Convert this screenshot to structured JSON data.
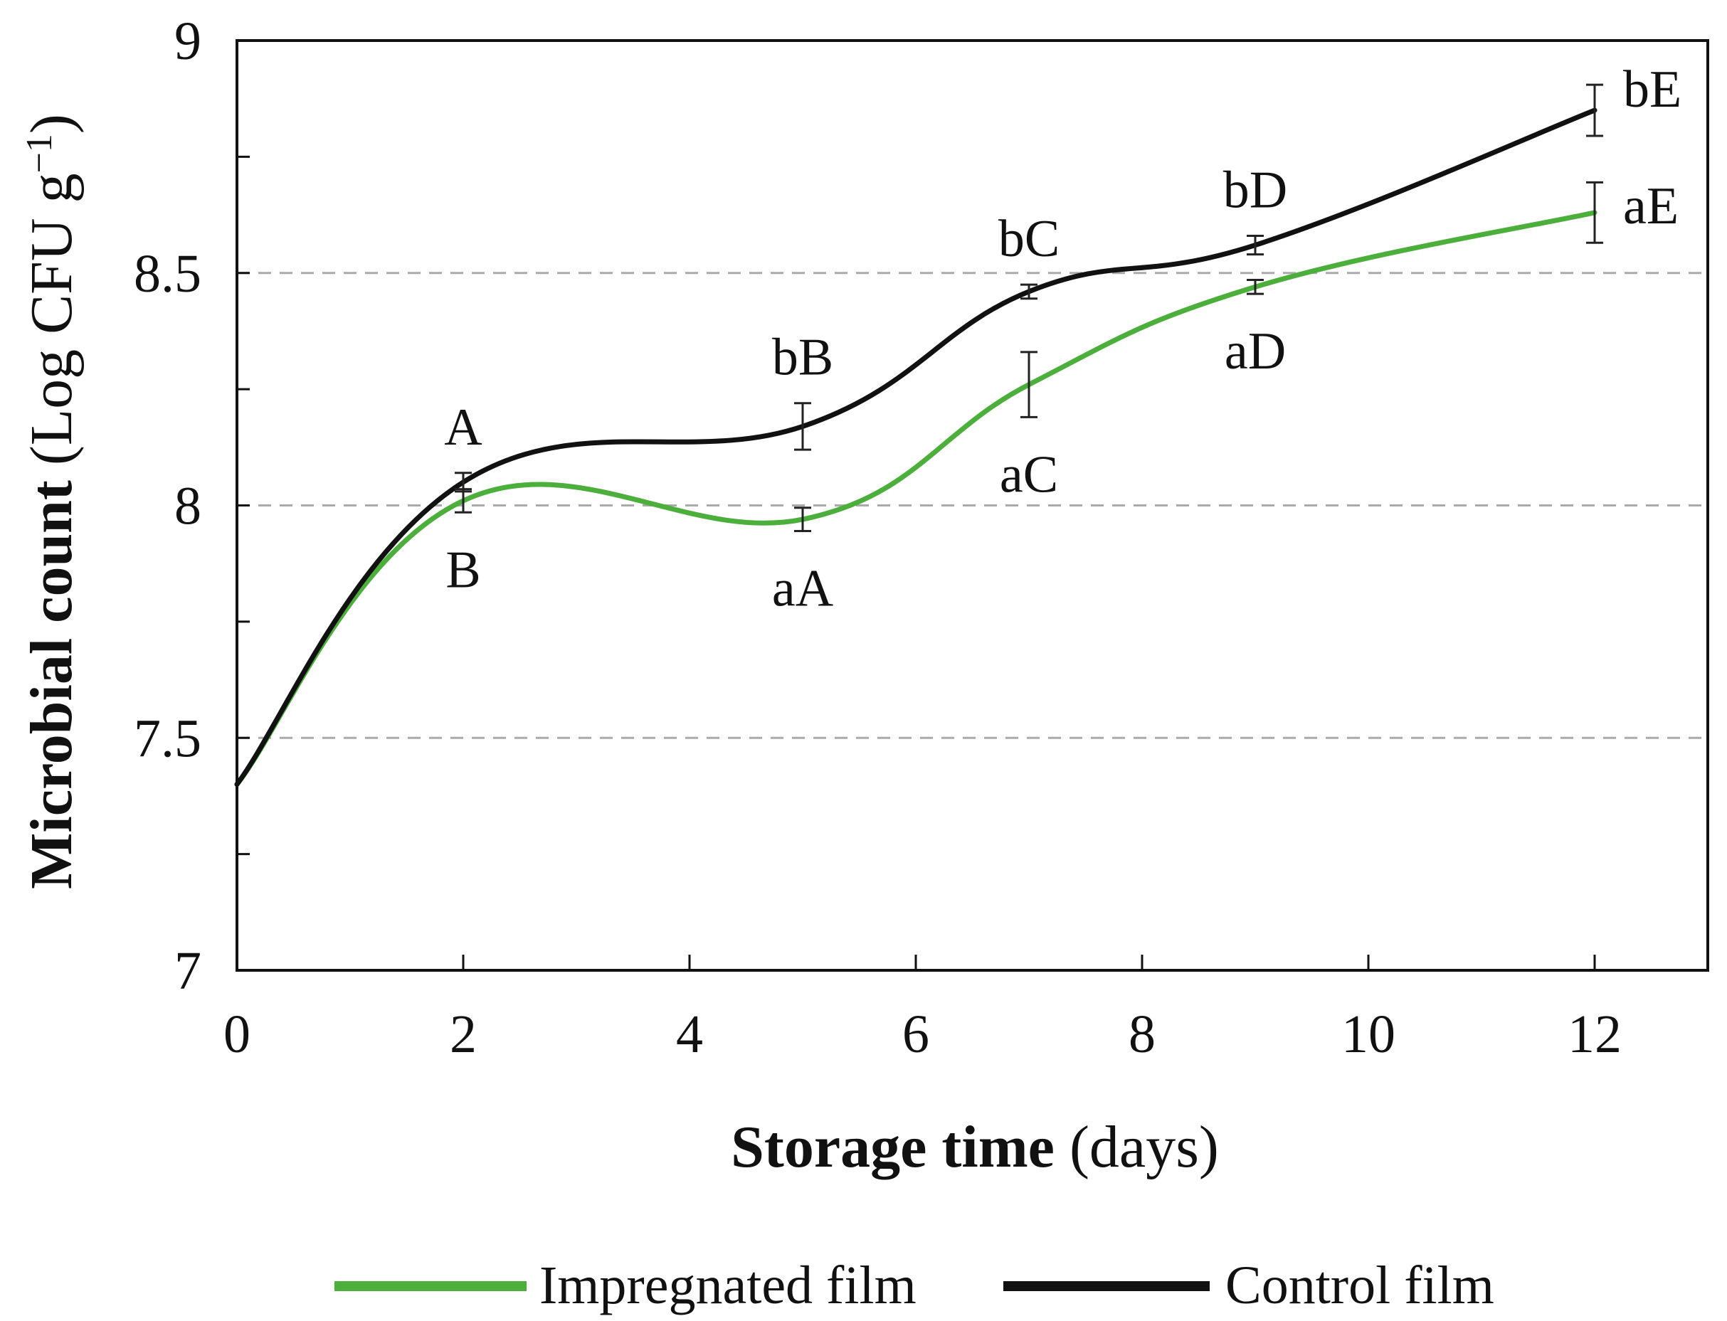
{
  "chart_data": {
    "type": "line",
    "xlabel": {
      "bold": "Storage time",
      "rest": " (days)"
    },
    "ylabel": {
      "bold": "Microbial count",
      "rest": " (Log CFU g",
      "sup": "−1",
      "close": ")"
    },
    "xlim": [
      0,
      13
    ],
    "ylim": [
      7,
      9
    ],
    "x_ticks": [
      0,
      2,
      4,
      6,
      8,
      10,
      12
    ],
    "x_tick_labels": [
      "0",
      "2",
      "4",
      "6",
      "8",
      "10",
      "12"
    ],
    "y_ticks": [
      7,
      7.25,
      7.5,
      7.75,
      8,
      8.25,
      8.5,
      8.75,
      9
    ],
    "y_tick_labels": [
      "7",
      "",
      "7.5",
      "",
      "8",
      "",
      "8.5",
      "",
      "9"
    ],
    "y_gridlines": [
      7.5,
      8,
      8.5
    ],
    "grid": "dashed horizontal at 7.5, 8, 8.5",
    "legend_position": "bottom",
    "series": [
      {
        "name": "Impregnated film",
        "color": "#4caf3c",
        "x": [
          0,
          2,
          5,
          7,
          9,
          12
        ],
        "y": [
          7.4,
          8.01,
          7.97,
          8.26,
          8.47,
          8.63
        ],
        "err": [
          0,
          0.025,
          0.025,
          0.07,
          0.015,
          0.065
        ],
        "labels": [
          "",
          "B",
          "aA",
          "aC",
          "aD",
          "aE"
        ]
      },
      {
        "name": "Control film",
        "color": "#111111",
        "x": [
          0,
          2,
          5,
          7,
          9,
          12
        ],
        "y": [
          7.4,
          8.05,
          8.17,
          8.46,
          8.56,
          8.85
        ],
        "err": [
          0,
          0.02,
          0.05,
          0.015,
          0.02,
          0.055
        ],
        "labels": [
          "",
          "A",
          "bB",
          "bC",
          "bD",
          "bE"
        ]
      }
    ]
  }
}
